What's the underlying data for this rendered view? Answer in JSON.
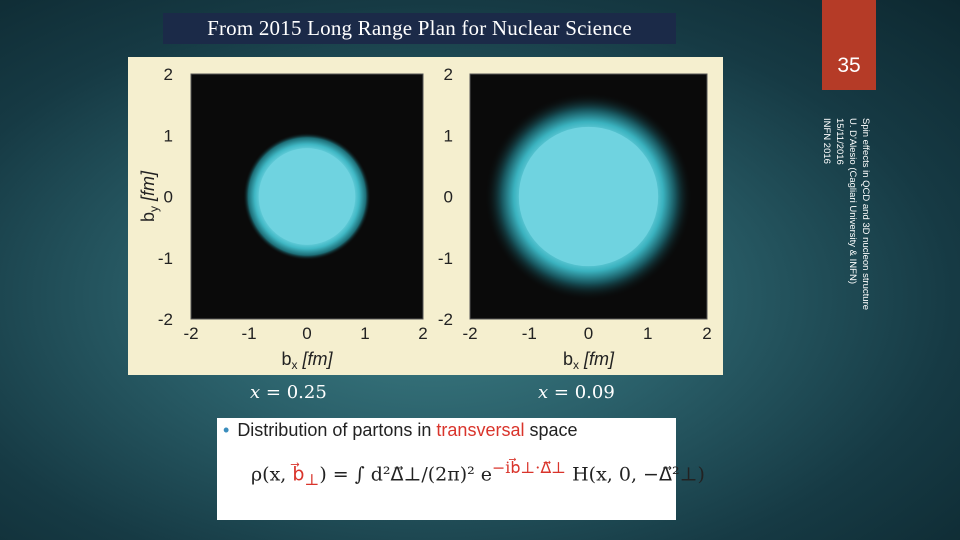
{
  "header": {
    "banner_text": "From 2015 Long Range Plan for Nuclear Science"
  },
  "slide": {
    "number": "35"
  },
  "footer": {
    "line1": "Spin effects in QCD and 3D nucleon structure",
    "line2": "U. D'Alesio (Cagliari University & INFN)",
    "line3": "15/11/2016",
    "line4": "INFN 2016"
  },
  "figure": {
    "ylabel": "b",
    "ylabel_sub": "y",
    "ylabel_unit": "[fm]",
    "xlabel": "b",
    "xlabel_sub": "x",
    "xlabel_unit": "[fm]",
    "ticks": [
      "-2",
      "-1",
      "0",
      "1",
      "2"
    ],
    "panels": [
      {
        "x_value": "0.25",
        "core_radius": 0.85,
        "halo_radius": 1.1
      },
      {
        "x_value": "0.09",
        "core_radius": 1.2,
        "halo_radius": 1.75
      }
    ],
    "colors": {
      "background": "#f5efcf",
      "panel": "#0a0a0a",
      "core": "#6fd3e0",
      "halo": "#1b5a62"
    }
  },
  "captions": {
    "left_x": "x = 0.25",
    "left_x_var": "x",
    "left_x_val": "= 0.25",
    "right_x_var": "x",
    "right_x_val": "= 0.09"
  },
  "text_box": {
    "bullet": "•",
    "line_prefix": "Distribution of partons in ",
    "line_highlight": "transversal",
    "line_suffix": " space",
    "formula_lhs": "ρ(x, ",
    "formula_b": "b⃗",
    "formula_b_sub": "⊥",
    "formula_mid": ") = ∫ d²Δ⃗⊥/(2π)² e",
    "formula_exp": "−ib⃗⊥·Δ⃗⊥",
    "formula_rhs": " H(x, 0, −Δ⃗²⊥)"
  }
}
